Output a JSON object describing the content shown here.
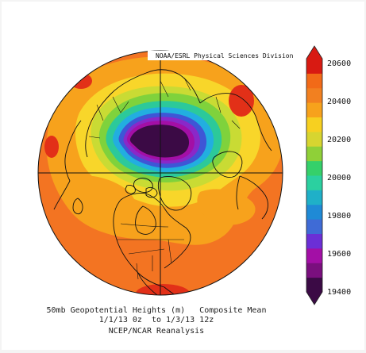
{
  "credit": "NOAA/ESRL Physical Sciences Division",
  "caption": {
    "line1": "50mb Geopotential Heights (m)   Composite Mean",
    "line2": "1/1/13 0z  to 1/3/13 12z",
    "line3": "NCEP/NCAR Reanalysis"
  },
  "colorbar": {
    "ticks": [
      "20600",
      "20400",
      "20200",
      "20000",
      "19800",
      "19600",
      "19400"
    ],
    "colors": [
      "#3b0a45",
      "#7a0f7e",
      "#a30fa6",
      "#6b2fd6",
      "#3f6bd6",
      "#1f8ad6",
      "#1fb0c8",
      "#2bd0a0",
      "#35d06a",
      "#8fd038",
      "#d7d530",
      "#f7d020",
      "#f7a21c",
      "#f28020",
      "#f26a18",
      "#d81a12"
    ]
  },
  "map": {
    "projection": "north-polar-stereographic",
    "field_colors": {
      "outer": "#f37422",
      "ring_orange": "#f7a21c",
      "ring_yellow": "#f8d62a",
      "ring_green": "#9fd43a",
      "ring_teal": "#2cc99a",
      "ring_cyan": "#22aee0",
      "ring_blue": "#3e56d6",
      "ring_violet": "#8a28c8",
      "center": "#3b0a45",
      "red_patch": "#e23018"
    }
  }
}
